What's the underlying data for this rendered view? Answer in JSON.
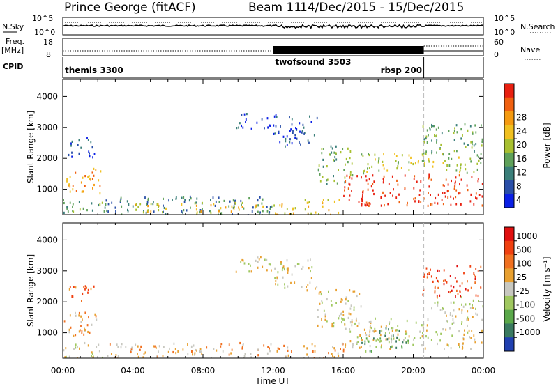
{
  "header": {
    "title": "Prince George (fitACF)",
    "beam": "Beam 11",
    "date_range": "14/Dec/2015 - 15/Dec/2015"
  },
  "top_panels": {
    "nsky_label": "N.Sky",
    "nsearch_label": "N.Search",
    "nsky_ticks": [
      "10^5",
      "10^0"
    ],
    "nsearch_ticks": [
      "10^5",
      "10^0"
    ],
    "freq_label": "Freq.",
    "freq_unit": "[MHz]",
    "freq_ticks": [
      "18",
      "8"
    ],
    "nave_label": "Nave",
    "nave_ticks": [
      "60",
      "0"
    ],
    "cpid_label": "CPID",
    "cpid_segments": [
      {
        "name": "themis 3300",
        "start": 0.0,
        "end": 12.0
      },
      {
        "name": "twofsound 3503",
        "start": 12.0,
        "end": 20.6
      },
      {
        "name": "rbsp 200",
        "start": 20.6,
        "end": 24.0
      }
    ]
  },
  "chart_data": [
    {
      "type": "heatmap",
      "name": "power",
      "ylabel": "Slant Range [km]",
      "yticks": [
        1000,
        2000,
        3000,
        4000
      ],
      "ylim": [
        180,
        4550
      ],
      "xlim": [
        0,
        24
      ],
      "xticks": [
        "00:00",
        "04:00",
        "08:00",
        "12:00",
        "16:00",
        "20:00",
        "00:00"
      ],
      "xlabel": "",
      "colorbar": {
        "label": "Power [dB]",
        "ticks": [
          "4",
          "8",
          "12",
          "16",
          "20",
          "24",
          "28"
        ],
        "colors": [
          "#0a1fe6",
          "#2a4fa8",
          "#3b7f7a",
          "#5fa15a",
          "#a8c030",
          "#f0c020",
          "#f59a10",
          "#f06010",
          "#e82010"
        ]
      },
      "regions": [
        {
          "t0": 0.0,
          "t1": 2.3,
          "r0": 180,
          "r1": 700,
          "level": 3
        },
        {
          "t0": 0.0,
          "t1": 2.2,
          "r0": 900,
          "r1": 1700,
          "level": 6
        },
        {
          "t0": 0.3,
          "t1": 1.8,
          "r0": 2000,
          "r1": 2700,
          "level": 1
        },
        {
          "t0": 2.3,
          "t1": 12.0,
          "r0": 180,
          "r1": 800,
          "level": 2
        },
        {
          "t0": 4.0,
          "t1": 11.5,
          "r0": 250,
          "r1": 600,
          "level": 5
        },
        {
          "t0": 9.8,
          "t1": 12.2,
          "r0": 3000,
          "r1": 3500,
          "level": 1
        },
        {
          "t0": 12.0,
          "t1": 14.5,
          "r0": 2400,
          "r1": 3400,
          "level": 1
        },
        {
          "t0": 12.0,
          "t1": 16.0,
          "r0": 180,
          "r1": 700,
          "level": 5
        },
        {
          "t0": 14.5,
          "t1": 16.5,
          "r0": 1200,
          "r1": 2500,
          "level": 3
        },
        {
          "t0": 16.0,
          "t1": 24.0,
          "r0": 500,
          "r1": 1500,
          "level": 8
        },
        {
          "t0": 17.0,
          "t1": 24.0,
          "r0": 1500,
          "r1": 2200,
          "level": 4
        },
        {
          "t0": 20.5,
          "t1": 24.0,
          "r0": 2200,
          "r1": 3200,
          "level": 3
        }
      ]
    },
    {
      "type": "heatmap",
      "name": "velocity",
      "ylabel": "Slant Range [km]",
      "yticks": [
        1000,
        2000,
        3000,
        4000
      ],
      "ylim": [
        180,
        4550
      ],
      "xlim": [
        0,
        24
      ],
      "xticks": [
        "00:00",
        "04:00",
        "08:00",
        "12:00",
        "16:00",
        "20:00",
        "00:00"
      ],
      "xlabel": "Time UT",
      "colorbar": {
        "label": "Velocity [m s⁻¹]",
        "ticks": [
          "1000",
          "500",
          "100",
          "25",
          "-25",
          "-100",
          "-500",
          "-1000"
        ],
        "colors": [
          "#2040b0",
          "#3a7a60",
          "#5aa84a",
          "#a0c860",
          "#c8c8c0",
          "#e8a030",
          "#f07020",
          "#f04010",
          "#e01010"
        ]
      },
      "regions": [
        {
          "t0": 0.0,
          "t1": 2.3,
          "r0": 180,
          "r1": 700,
          "level": 4
        },
        {
          "t0": 0.0,
          "t1": 2.2,
          "r0": 900,
          "r1": 1700,
          "level": 5
        },
        {
          "t0": 0.3,
          "t1": 1.8,
          "r0": 2000,
          "r1": 2600,
          "level": 6
        },
        {
          "t0": 2.3,
          "t1": 12.0,
          "r0": 180,
          "r1": 700,
          "level": 5
        },
        {
          "t0": 9.8,
          "t1": 12.2,
          "r0": 3000,
          "r1": 3500,
          "level": 4
        },
        {
          "t0": 12.0,
          "t1": 14.5,
          "r0": 2400,
          "r1": 3400,
          "level": 4
        },
        {
          "t0": 12.0,
          "t1": 16.0,
          "r0": 180,
          "r1": 700,
          "level": 5
        },
        {
          "t0": 14.5,
          "t1": 17.0,
          "r0": 1200,
          "r1": 2500,
          "level": 4
        },
        {
          "t0": 16.0,
          "t1": 24.0,
          "r0": 500,
          "r1": 1500,
          "level": 4
        },
        {
          "t0": 17.0,
          "t1": 20.0,
          "r0": 400,
          "r1": 1200,
          "level": 2
        },
        {
          "t0": 20.5,
          "t1": 24.0,
          "r0": 2200,
          "r1": 3200,
          "level": 7
        },
        {
          "t0": 21.0,
          "t1": 24.0,
          "r0": 1500,
          "r1": 2200,
          "level": 4
        }
      ]
    }
  ]
}
